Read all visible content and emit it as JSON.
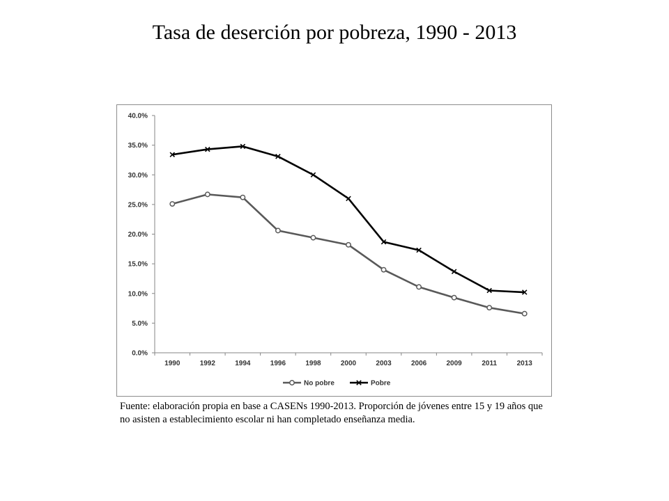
{
  "title": "Tasa de deserción por pobreza, 1990 - 2013",
  "caption": "Fuente: elaboración propia en base a CASENs 1990-2013. Proporción de jóvenes entre 15 y 19 años que no asisten a establecimiento escolar ni han completado enseñanza media.",
  "chart_data": {
    "type": "line",
    "categories": [
      "1990",
      "1992",
      "1994",
      "1996",
      "1998",
      "2000",
      "2003",
      "2006",
      "2009",
      "2011",
      "2013"
    ],
    "series": [
      {
        "name": "No pobre",
        "marker": "circle",
        "color": "#595959",
        "values": [
          25.1,
          26.7,
          26.2,
          20.6,
          19.4,
          18.2,
          14.0,
          11.1,
          9.3,
          7.6,
          6.6
        ]
      },
      {
        "name": "Pobre",
        "marker": "x",
        "color": "#000000",
        "values": [
          33.4,
          34.3,
          34.8,
          33.1,
          30.0,
          26.0,
          18.7,
          17.3,
          13.7,
          10.5,
          10.2
        ]
      }
    ],
    "y_ticks": [
      "0.0%",
      "5.0%",
      "10.0%",
      "15.0%",
      "20.0%",
      "25.0%",
      "30.0%",
      "35.0%",
      "40.0%"
    ],
    "ylim": [
      0,
      40
    ],
    "y_unit": "%",
    "grid": false,
    "legend_position": "bottom"
  }
}
